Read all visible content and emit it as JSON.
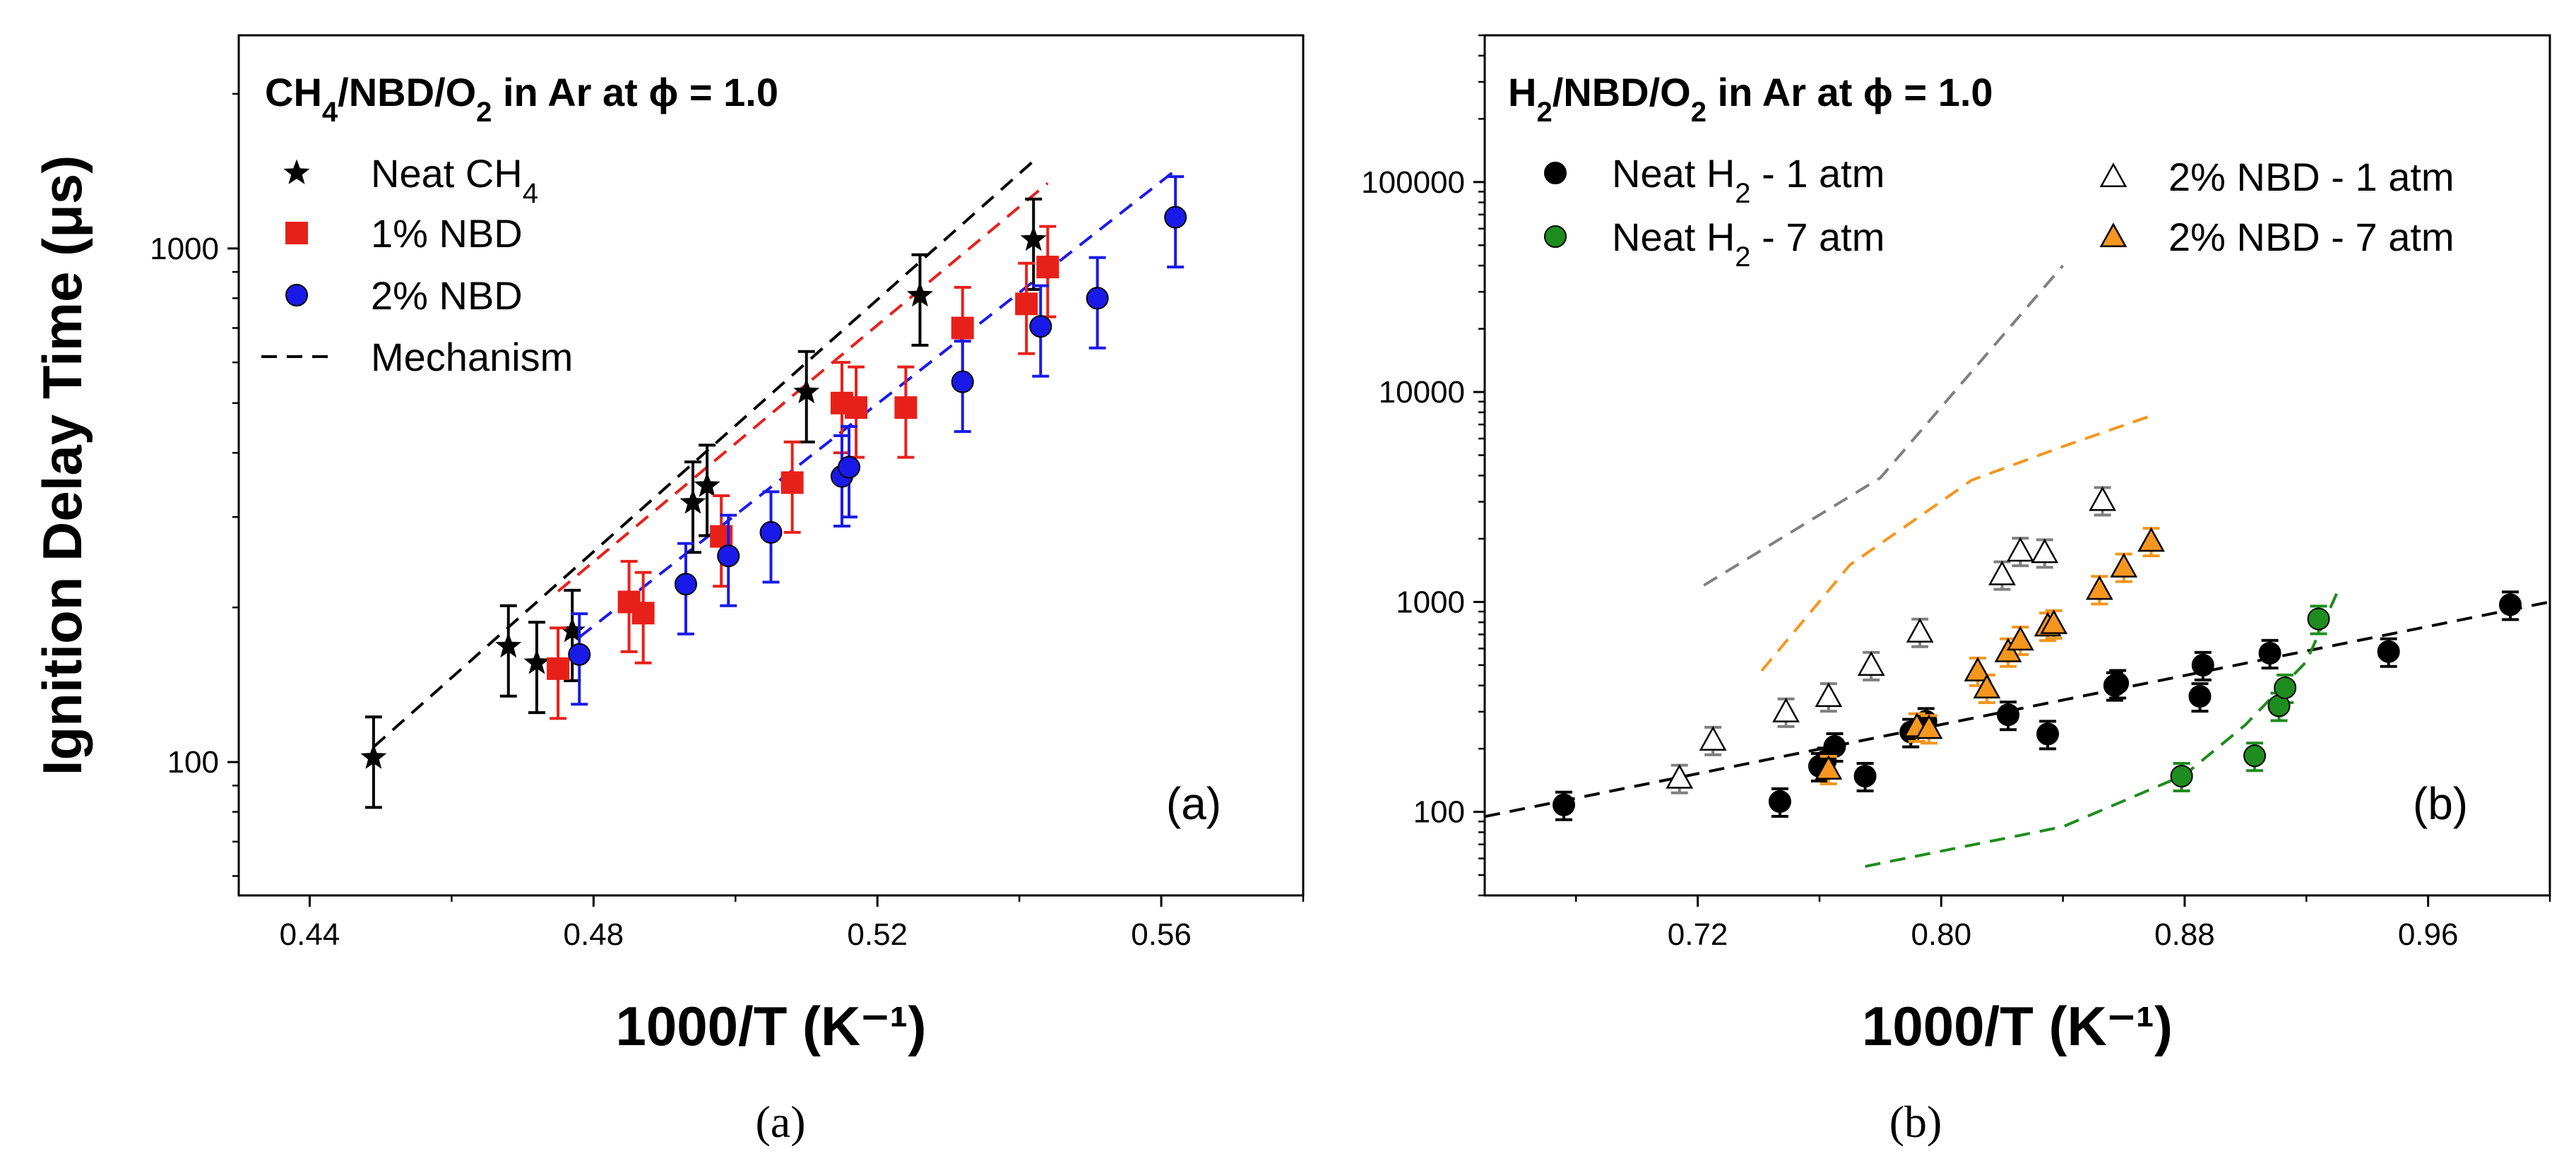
{
  "caption": {
    "a": "(a)",
    "b": "(b)"
  },
  "chart_data": [
    {
      "type": "scatter",
      "panel_label": "(a)",
      "title": {
        "base": "CH",
        "sub1": "4",
        "mid": "/NBD/O",
        "sub2": "2",
        "tail": " in Ar at ϕ = 1.0"
      },
      "xlabel": "1000/T (K⁻¹)",
      "ylabel": "Ignition Delay Time (μs)",
      "xlim": [
        0.43,
        0.58
      ],
      "ylim": [
        55,
        2600
      ],
      "yscale": "log",
      "xticks": [
        0.44,
        0.48,
        0.52,
        0.56
      ],
      "xtick_labels": [
        "0.44",
        "0.48",
        "0.52",
        "0.56"
      ],
      "yticks": [
        100,
        1000
      ],
      "ytick_labels": [
        "100",
        "1000"
      ],
      "legend": [
        {
          "label": "Neat CH",
          "sub": "4"
        },
        {
          "label": "1% NBD"
        },
        {
          "label": "2% NBD"
        },
        {
          "label": "Mechanism"
        }
      ],
      "series": [
        {
          "name": "Neat CH4",
          "marker": "star",
          "color": "#000000",
          "x": [
            0.449,
            0.468,
            0.472,
            0.477,
            0.494,
            0.496,
            0.51,
            0.526,
            0.542
          ],
          "y": [
            102,
            168,
            156,
            180,
            320,
            345,
            525,
            810,
            1040
          ],
          "err": 0.2
        },
        {
          "name": "1% NBD",
          "marker": "square",
          "color": "#e8201a",
          "x": [
            0.475,
            0.485,
            0.487,
            0.498,
            0.508,
            0.515,
            0.517,
            0.524,
            0.532,
            0.541,
            0.544
          ],
          "y": [
            152,
            205,
            195,
            275,
            350,
            500,
            490,
            490,
            700,
            780,
            920
          ],
          "err": 0.2
        },
        {
          "name": "2% NBD",
          "marker": "circle",
          "color": "#1a1ae8",
          "x": [
            0.478,
            0.493,
            0.499,
            0.505,
            0.515,
            0.516,
            0.532,
            0.543,
            0.551,
            0.562
          ],
          "y": [
            162,
            222,
            252,
            280,
            360,
            375,
            550,
            705,
            800,
            1150
          ],
          "err": 0.2
        }
      ],
      "lines": [
        {
          "name": "Mechanism CH4",
          "color": "#000000",
          "x": [
            0.449,
            0.542
          ],
          "y": [
            107,
            1480
          ]
        },
        {
          "name": "Mechanism 1% NBD",
          "color": "#e8201a",
          "x": [
            0.475,
            0.544
          ],
          "y": [
            215,
            1340
          ]
        },
        {
          "name": "Mechanism 2% NBD",
          "color": "#1a1ae8",
          "x": [
            0.478,
            0.562
          ],
          "y": [
            175,
            1420
          ]
        }
      ]
    },
    {
      "type": "scatter",
      "panel_label": "(b)",
      "title": {
        "base": "H",
        "sub1": "2",
        "mid": "/NBD/O",
        "sub2": "2",
        "tail": " in Ar at ϕ = 1.0"
      },
      "xlabel": "1000/T (K⁻¹)",
      "ylabel": "",
      "xlim": [
        0.65,
        1.0
      ],
      "ylim": [
        40,
        500000
      ],
      "yscale": "log",
      "xticks": [
        0.72,
        0.8,
        0.88,
        0.96
      ],
      "xtick_labels": [
        "0.72",
        "0.80",
        "0.88",
        "0.96"
      ],
      "yticks": [
        100,
        1000,
        10000,
        100000
      ],
      "ytick_labels": [
        "100",
        "1000",
        "10000",
        "100000"
      ],
      "legend": [
        {
          "label": "Neat H",
          "sub": "2",
          "tail": " - 1 atm"
        },
        {
          "label": "Neat H",
          "sub": "2",
          "tail": " - 7 atm"
        },
        {
          "label": "2% NBD - 1 atm"
        },
        {
          "label": "2% NBD - 7 atm"
        }
      ],
      "series": [
        {
          "name": "Neat H2 - 1 atm",
          "marker": "circle",
          "color": "#000000",
          "errcolor": "#000000",
          "x": [
            0.676,
            0.747,
            0.76,
            0.762,
            0.765,
            0.775,
            0.79,
            0.795,
            0.822,
            0.835,
            0.857,
            0.858,
            0.885,
            0.886,
            0.908,
            0.947,
            0.987
          ],
          "y": [
            108,
            112,
            165,
            175,
            205,
            148,
            240,
            270,
            290,
            235,
            400,
            410,
            355,
            500,
            570,
            580,
            970
          ],
          "err": 0.15
        },
        {
          "name": "Neat H2 - 7 atm",
          "marker": "circle",
          "color": "#1e8c1e",
          "errcolor": "#1e8c1e",
          "x": [
            0.879,
            0.903,
            0.911,
            0.913,
            0.924
          ],
          "y": [
            148,
            185,
            320,
            390,
            830
          ],
          "err": 0.15
        },
        {
          "name": "2% NBD - 1 atm",
          "marker": "triangle-open",
          "color": "#ffffff",
          "errcolor": "#808080",
          "x": [
            0.714,
            0.725,
            0.749,
            0.763,
            0.777,
            0.793,
            0.82,
            0.826,
            0.834,
            0.853
          ],
          "y": [
            145,
            220,
            300,
            355,
            500,
            720,
            1350,
            1750,
            1720,
            3050
          ],
          "err": 0.15
        },
        {
          "name": "2% NBD - 7 atm",
          "marker": "triangle",
          "color": "#f5961e",
          "errcolor": "#f5961e",
          "x": [
            0.763,
            0.792,
            0.796,
            0.812,
            0.815,
            0.822,
            0.826,
            0.835,
            0.837,
            0.852,
            0.86,
            0.869
          ],
          "y": [
            160,
            255,
            250,
            470,
            390,
            580,
            660,
            770,
            790,
            1150,
            1470,
            1950
          ],
          "err": 0.15
        }
      ],
      "lines": [
        {
          "name": "Mechanism Neat H2 - 1 atm",
          "color": "#000000",
          "x": [
            0.65,
            1.0
          ],
          "y": [
            95,
            1000
          ]
        },
        {
          "name": "Mechanism Neat H2 - 7 atm",
          "color": "#1e8c1e",
          "x": [
            0.775,
            0.8,
            0.84,
            0.88,
            0.9,
            0.92,
            0.93
          ],
          "y": [
            55,
            65,
            85,
            150,
            260,
            520,
            1100
          ]
        },
        {
          "name": "Mechanism 2% NBD - 1 atm",
          "color": "#808080",
          "x": [
            0.722,
            0.78,
            0.84
          ],
          "y": [
            1200,
            3900,
            40000
          ]
        },
        {
          "name": "Mechanism 2% NBD - 7 atm",
          "color": "#f5961e",
          "x": [
            0.741,
            0.77,
            0.81,
            0.84,
            0.87
          ],
          "y": [
            470,
            1500,
            3800,
            5500,
            7800
          ]
        }
      ]
    }
  ]
}
